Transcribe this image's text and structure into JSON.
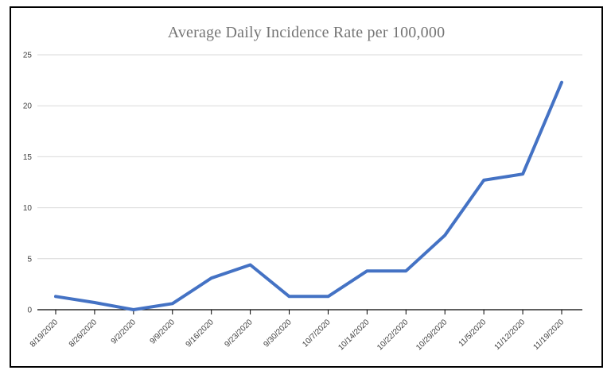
{
  "chart_data": {
    "type": "line",
    "title": "Average Daily Incidence Rate per 100,000",
    "categories": [
      "8/19/2020",
      "8/26/2020",
      "9/2/2020",
      "9/9/2020",
      "9/16/2020",
      "9/23/2020",
      "9/30/2020",
      "10/7/2020",
      "10/14/2020",
      "10/22/2020",
      "10/29/2020",
      "11/5/2020",
      "11/12/2020",
      "11/19/2020"
    ],
    "values": [
      1.3,
      0.7,
      0,
      0.6,
      3.1,
      4.4,
      1.3,
      1.3,
      3.8,
      3.8,
      7.3,
      12.7,
      13.3,
      22.3
    ],
    "xlabel": "",
    "ylabel": "",
    "ylim": [
      0,
      25
    ],
    "yticks": [
      0,
      5,
      10,
      15,
      20,
      25
    ],
    "grid": true,
    "legend": "none",
    "colors": {
      "line": "#4472c4",
      "gridline": "#d9d9d9",
      "axis": "#000000",
      "tick_label": "#404040",
      "title": "#757575",
      "frame_border": "#000000",
      "background": "#ffffff"
    }
  }
}
